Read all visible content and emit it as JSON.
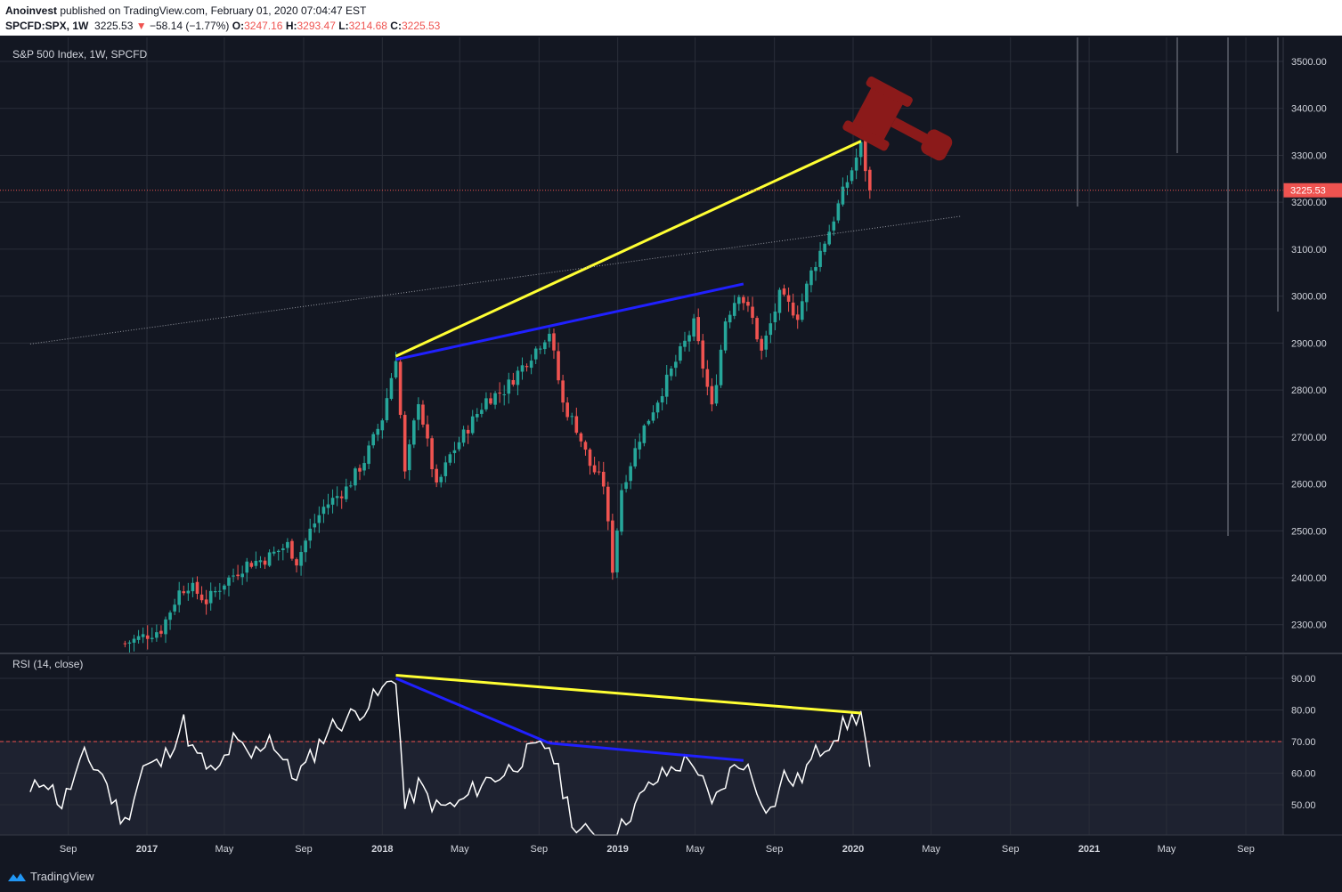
{
  "header": {
    "publisher": "Anoinvest",
    "published_text": " published on TradingView.com, February 01, 2020 07:04:47 EST",
    "symbol": "SPCFD:SPX, 1W",
    "price": "3225.53",
    "change": "−58.14 (−1.77%)",
    "open_label": "O:",
    "open": "3247.16",
    "high_label": "H:",
    "high": "3293.47",
    "low_label": "L:",
    "low": "3214.68",
    "close_label": "C:",
    "close": "3225.53"
  },
  "main_pane": {
    "title": "S&P 500 Index, 1W, SPCFD"
  },
  "rsi_pane": {
    "title": "RSI (14, close)"
  },
  "footer": {
    "brand": "TradingView"
  },
  "colors": {
    "background": "#131722",
    "up": "#26a69a",
    "down": "#ef5350",
    "yellow": "#ffff33",
    "blue": "#2020ff",
    "rsi_line": "#ffffff",
    "gavel": "#8b1a1a"
  },
  "chart_data": [
    {
      "type": "candlestick",
      "title": "S&P 500 Index, 1W, SPCFD",
      "x_tick_labels": [
        "Sep",
        "2017",
        "May",
        "Sep",
        "2018",
        "May",
        "Sep",
        "2019",
        "May",
        "Sep",
        "2020",
        "May",
        "Sep",
        "2021",
        "May",
        "Sep"
      ],
      "y_tick_labels": [
        "3500.00",
        "3400.00",
        "3300.00",
        "3200.00",
        "3100.00",
        "3000.00",
        "2900.00",
        "2800.00",
        "2700.00",
        "2600.00",
        "2500.00",
        "2400.00",
        "2300.00"
      ],
      "ylim": [
        2250,
        3560
      ],
      "last_price_label": "3225.53",
      "last_price": 3225.53,
      "weekly_close_path": [
        [
          "2016-11-28",
          2260
        ],
        [
          "2016-12-26",
          2275
        ],
        [
          "2017-01-23",
          2290
        ],
        [
          "2017-02-20",
          2370
        ],
        [
          "2017-03-06",
          2385
        ],
        [
          "2017-04-03",
          2350
        ],
        [
          "2017-05-01",
          2390
        ],
        [
          "2017-06-05",
          2430
        ],
        [
          "2017-07-03",
          2440
        ],
        [
          "2017-08-07",
          2470
        ],
        [
          "2017-08-21",
          2435
        ],
        [
          "2017-09-11",
          2500
        ],
        [
          "2017-10-02",
          2550
        ],
        [
          "2017-11-06",
          2590
        ],
        [
          "2017-12-04",
          2650
        ],
        [
          "2018-01-01",
          2740
        ],
        [
          "2018-01-22",
          2872
        ],
        [
          "2018-02-05",
          2620
        ],
        [
          "2018-02-26",
          2780
        ],
        [
          "2018-03-26",
          2590
        ],
        [
          "2018-04-16",
          2660
        ],
        [
          "2018-05-14",
          2720
        ],
        [
          "2018-06-11",
          2780
        ],
        [
          "2018-07-09",
          2800
        ],
        [
          "2018-08-06",
          2850
        ],
        [
          "2018-09-17",
          2925
        ],
        [
          "2018-10-08",
          2770
        ],
        [
          "2018-10-29",
          2720
        ],
        [
          "2018-11-19",
          2640
        ],
        [
          "2018-12-10",
          2600
        ],
        [
          "2018-12-24",
          2420
        ],
        [
          "2019-01-07",
          2590
        ],
        [
          "2019-02-04",
          2700
        ],
        [
          "2019-03-04",
          2780
        ],
        [
          "2019-04-08",
          2880
        ],
        [
          "2019-04-29",
          2940
        ],
        [
          "2019-05-27",
          2760
        ],
        [
          "2019-06-17",
          2950
        ],
        [
          "2019-07-08",
          3010
        ],
        [
          "2019-07-29",
          2950
        ],
        [
          "2019-08-12",
          2880
        ],
        [
          "2019-09-09",
          3000
        ],
        [
          "2019-10-07",
          2960
        ],
        [
          "2019-10-28",
          3050
        ],
        [
          "2019-11-25",
          3140
        ],
        [
          "2019-12-16",
          3220
        ],
        [
          "2020-01-13",
          3320
        ],
        [
          "2020-01-27",
          3225.53
        ]
      ],
      "annotations": [
        {
          "kind": "trendline",
          "color": "yellow",
          "from": [
            "2018-01-22",
            2872
          ],
          "to": [
            "2020-01-13",
            3330
          ]
        },
        {
          "kind": "trendline",
          "color": "blue",
          "from": [
            "2018-01-22",
            2865
          ],
          "to": [
            "2019-07-15",
            3026
          ]
        },
        {
          "kind": "dotted-line",
          "color": "gray",
          "from": [
            "2016-07-04",
            2898
          ],
          "to": [
            "2020-06-15",
            3170
          ]
        },
        {
          "kind": "horizontal-price-line",
          "price": 3225.53
        }
      ]
    },
    {
      "type": "line",
      "title": "RSI (14, close)",
      "y_tick_labels": [
        "90.00",
        "80.00",
        "70.00",
        "60.00",
        "50.00"
      ],
      "ylim": [
        41,
        96
      ],
      "overbought": 70,
      "series": [
        {
          "values_by_date": [
            [
              "2016-07-04",
              53
            ],
            [
              "2016-07-25",
              59
            ],
            [
              "2016-08-22",
              50
            ],
            [
              "2016-09-26",
              65
            ],
            [
              "2016-10-24",
              60
            ],
            [
              "2016-11-07",
              52
            ],
            [
              "2016-11-28",
              44
            ],
            [
              "2016-12-26",
              62
            ],
            [
              "2017-01-23",
              63
            ],
            [
              "2017-02-27",
              76
            ],
            [
              "2017-03-13",
              67
            ],
            [
              "2017-04-17",
              59
            ],
            [
              "2017-05-15",
              70
            ],
            [
              "2017-06-12",
              65
            ],
            [
              "2017-07-10",
              72
            ],
            [
              "2017-08-14",
              59
            ],
            [
              "2017-09-04",
              62
            ],
            [
              "2017-10-09",
              74
            ],
            [
              "2017-11-13",
              78
            ],
            [
              "2017-12-11",
              82
            ],
            [
              "2018-01-01",
              86
            ],
            [
              "2018-01-22",
              91
            ],
            [
              "2018-02-05",
              49
            ],
            [
              "2018-02-26",
              56
            ],
            [
              "2018-03-26",
              49
            ],
            [
              "2018-04-30",
              50
            ],
            [
              "2018-06-04",
              57
            ],
            [
              "2018-07-09",
              60
            ],
            [
              "2018-08-13",
              66
            ],
            [
              "2018-09-17",
              69
            ],
            [
              "2018-10-08",
              55
            ],
            [
              "2018-10-29",
              42
            ],
            [
              "2018-11-26",
              40
            ],
            [
              "2018-12-24",
              36
            ],
            [
              "2019-01-14",
              46
            ],
            [
              "2019-02-25",
              57
            ],
            [
              "2019-04-08",
              63
            ],
            [
              "2019-04-29",
              64
            ],
            [
              "2019-05-27",
              49
            ],
            [
              "2019-06-24",
              60
            ],
            [
              "2019-07-15",
              64
            ],
            [
              "2019-08-05",
              55
            ],
            [
              "2019-08-26",
              48
            ],
            [
              "2019-09-16",
              59
            ],
            [
              "2019-10-07",
              57
            ],
            [
              "2019-11-04",
              66
            ],
            [
              "2019-12-02",
              72
            ],
            [
              "2019-12-30",
              77
            ],
            [
              "2020-01-13",
              79
            ],
            [
              "2020-01-27",
              62
            ]
          ]
        }
      ],
      "annotations": [
        {
          "kind": "trendline",
          "color": "yellow",
          "from": [
            "2018-01-22",
            91
          ],
          "to": [
            "2020-01-13",
            79
          ]
        },
        {
          "kind": "trendline",
          "color": "blue",
          "from": [
            "2018-01-22",
            90
          ],
          "to": [
            "2018-09-17",
            69.5
          ]
        },
        {
          "kind": "trendline",
          "color": "blue",
          "from": [
            "2018-09-17",
            69.5
          ],
          "to": [
            "2019-07-15",
            64
          ]
        }
      ]
    }
  ]
}
